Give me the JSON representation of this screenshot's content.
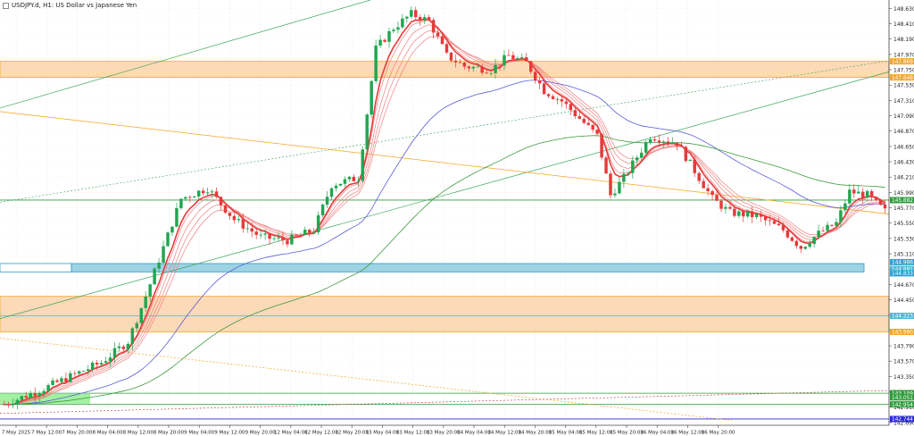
{
  "window": {
    "title": "USDJPY.d, H1:  US Dollar vs Japanese Yen",
    "icon_name": "chart-window-icon"
  },
  "chart_data": {
    "type": "candlestick",
    "symbol": "USDJPY.d",
    "timeframe": "H1",
    "description": "US Dollar vs Japanese Yen",
    "ylim": [
      142.65,
      148.75
    ],
    "y_ticks": [
      "148.630",
      "148.410",
      "148.190",
      "147.970",
      "147.750",
      "147.530",
      "147.310",
      "147.090",
      "146.870",
      "146.650",
      "146.430",
      "146.210",
      "145.990",
      "145.770",
      "145.550",
      "145.330",
      "145.110",
      "144.890",
      "144.670",
      "144.450",
      "144.230",
      "144.010",
      "143.790",
      "143.570",
      "143.350",
      "143.130",
      "142.910",
      "142.690"
    ],
    "x_labels": [
      "7 May 2025",
      "7 May 12:00",
      "7 May 20:00",
      "8 May 04:00",
      "8 May 12:00",
      "8 May 20:00",
      "9 May 04:00",
      "9 May 12:00",
      "9 May 20:00",
      "12 May 04:00",
      "12 May 12:00",
      "12 May 20:00",
      "13 May 04:00",
      "13 May 12:00",
      "13 May 20:00",
      "14 May 04:00",
      "14 May 12:00",
      "14 May 20:00",
      "15 May 04:00",
      "15 May 12:00",
      "15 May 20:00",
      "16 May 04:00",
      "16 May 12:00",
      "16 May 20:00"
    ],
    "price_labels": [
      {
        "value": "147.869",
        "price": 147.87,
        "color": "#f5a623"
      },
      {
        "value": "147.648",
        "price": 147.64,
        "color": "#f5a623"
      },
      {
        "value": "145.882",
        "price": 145.88,
        "color": "#2e9e3c"
      },
      {
        "value": "144.986",
        "price": 144.99,
        "color": "#29a3d6"
      },
      {
        "value": "144.891",
        "price": 144.89,
        "color": "#4db8d6"
      },
      {
        "value": "144.833",
        "price": 144.83,
        "color": "#29a3d6"
      },
      {
        "value": "144.223",
        "price": 144.22,
        "color": "#4db8d6"
      },
      {
        "value": "143.990",
        "price": 143.99,
        "color": "#f5a623"
      },
      {
        "value": "143.109",
        "price": 143.11,
        "color": "#2e9e3c"
      },
      {
        "value": "143.051",
        "price": 143.05,
        "color": "#2e9e3c"
      },
      {
        "value": "142.954",
        "price": 142.95,
        "color": "#2e9e3c"
      },
      {
        "value": "142.744",
        "price": 142.74,
        "color": "#2a2ad6"
      }
    ],
    "zones": [
      {
        "from": 147.64,
        "to": 147.87,
        "color": "#fcd9b8",
        "border": "#f5a623"
      },
      {
        "from": 144.85,
        "to": 144.97,
        "color": "#9dd3e3",
        "border": "#2e9bc7"
      },
      {
        "from": 143.99,
        "to": 144.5,
        "color": "#fcd9b8",
        "border": "#f5a623"
      }
    ],
    "candle_count": 200,
    "bull_color": "#21a651",
    "bear_color": "#e63a3a",
    "ma_colors": {
      "fast": "#e63a3a",
      "mid": "#5b5bd6",
      "slow": "#3f9b3f"
    }
  }
}
